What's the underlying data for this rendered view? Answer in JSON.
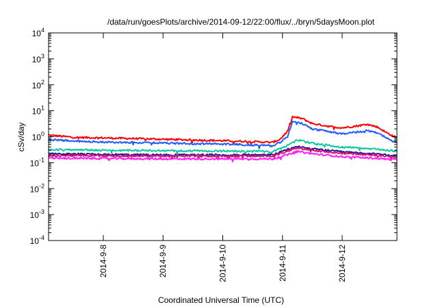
{
  "chart_data": {
    "type": "line",
    "title": "/data/run/goesPlots/archive/2014-09-12/22:00/flux/../bryn/5daysMoon.plot",
    "xlabel": "Coordinated Universal Time (UTC)",
    "ylabel": "cSv/day",
    "x_range": [
      "2014-09-07 02:00",
      "2014-09-12 22:00"
    ],
    "x_ticks": [
      "2014-9-8",
      "2014-9-9",
      "2014-9-10",
      "2014-9-11",
      "2014-9-12"
    ],
    "y_scale": "log",
    "ylim": [
      0.0001,
      10000
    ],
    "y_ticks": [
      {
        "base": "10",
        "exp": "4"
      },
      {
        "base": "10",
        "exp": "3"
      },
      {
        "base": "10",
        "exp": "2"
      },
      {
        "base": "10",
        "exp": "1"
      },
      {
        "base": "10",
        "exp": "0"
      },
      {
        "base": "10",
        "exp": "-1"
      },
      {
        "base": "10",
        "exp": "-2"
      },
      {
        "base": "10",
        "exp": "-3"
      },
      {
        "base": "10",
        "exp": "-4"
      }
    ],
    "grid": false,
    "legend": "none",
    "series": [
      {
        "color": "#ff0000",
        "points": [
          [
            "2014-09-07 02:00",
            1.15
          ],
          [
            "2014-09-07 12:00",
            0.95
          ],
          [
            "2014-09-08 00:00",
            0.9
          ],
          [
            "2014-09-08 12:00",
            0.85
          ],
          [
            "2014-09-09 00:00",
            0.8
          ],
          [
            "2014-09-09 12:00",
            0.75
          ],
          [
            "2014-09-10 00:00",
            0.7
          ],
          [
            "2014-09-10 12:00",
            0.65
          ],
          [
            "2014-09-10 20:00",
            0.6
          ],
          [
            "2014-09-10 23:00",
            0.8
          ],
          [
            "2014-09-11 02:00",
            1.6
          ],
          [
            "2014-09-11 04:00",
            5.8
          ],
          [
            "2014-09-11 08:00",
            5.0
          ],
          [
            "2014-09-11 12:00",
            3.2
          ],
          [
            "2014-09-11 20:00",
            2.4
          ],
          [
            "2014-09-12 00:00",
            2.2
          ],
          [
            "2014-09-12 06:00",
            2.6
          ],
          [
            "2014-09-12 10:00",
            3.0
          ],
          [
            "2014-09-12 14:00",
            2.4
          ],
          [
            "2014-09-12 18:00",
            1.4
          ],
          [
            "2014-09-12 22:00",
            0.9
          ]
        ]
      },
      {
        "color": "#1f5fff",
        "points": [
          [
            "2014-09-07 02:00",
            0.78
          ],
          [
            "2014-09-07 12:00",
            0.68
          ],
          [
            "2014-09-08 00:00",
            0.62
          ],
          [
            "2014-09-08 12:00",
            0.6
          ],
          [
            "2014-09-09 00:00",
            0.57
          ],
          [
            "2014-09-09 12:00",
            0.54
          ],
          [
            "2014-09-10 00:00",
            0.52
          ],
          [
            "2014-09-10 12:00",
            0.48
          ],
          [
            "2014-09-10 20:00",
            0.45
          ],
          [
            "2014-09-10 23:00",
            0.6
          ],
          [
            "2014-09-11 02:00",
            1.0
          ],
          [
            "2014-09-11 04:00",
            3.8
          ],
          [
            "2014-09-11 08:00",
            3.2
          ],
          [
            "2014-09-11 12:00",
            2.0
          ],
          [
            "2014-09-11 20:00",
            1.5
          ],
          [
            "2014-09-12 00:00",
            1.3
          ],
          [
            "2014-09-12 06:00",
            1.5
          ],
          [
            "2014-09-12 10:00",
            1.7
          ],
          [
            "2014-09-12 14:00",
            1.4
          ],
          [
            "2014-09-12 18:00",
            0.9
          ],
          [
            "2014-09-12 22:00",
            0.6
          ]
        ]
      },
      {
        "color": "#10c8a0",
        "points": [
          [
            "2014-09-07 02:00",
            0.32
          ],
          [
            "2014-09-08 00:00",
            0.3
          ],
          [
            "2014-09-09 00:00",
            0.29
          ],
          [
            "2014-09-10 00:00",
            0.28
          ],
          [
            "2014-09-10 20:00",
            0.27
          ],
          [
            "2014-09-11 02:00",
            0.45
          ],
          [
            "2014-09-11 06:00",
            0.75
          ],
          [
            "2014-09-11 12:00",
            0.55
          ],
          [
            "2014-09-12 00:00",
            0.4
          ],
          [
            "2014-09-12 12:00",
            0.34
          ],
          [
            "2014-09-12 22:00",
            0.28
          ]
        ]
      },
      {
        "color": "#1a1a90",
        "points": [
          [
            "2014-09-07 02:00",
            0.22
          ],
          [
            "2014-09-08 00:00",
            0.21
          ],
          [
            "2014-09-09 00:00",
            0.2
          ],
          [
            "2014-09-10 00:00",
            0.2
          ],
          [
            "2014-09-10 20:00",
            0.2
          ],
          [
            "2014-09-11 02:00",
            0.32
          ],
          [
            "2014-09-11 06:00",
            0.42
          ],
          [
            "2014-09-11 12:00",
            0.34
          ],
          [
            "2014-09-12 00:00",
            0.26
          ],
          [
            "2014-09-12 12:00",
            0.22
          ],
          [
            "2014-09-12 22:00",
            0.18
          ]
        ]
      },
      {
        "color": "#e01070",
        "points": [
          [
            "2014-09-07 02:00",
            0.19
          ],
          [
            "2014-09-08 00:00",
            0.185
          ],
          [
            "2014-09-09 00:00",
            0.18
          ],
          [
            "2014-09-10 00:00",
            0.18
          ],
          [
            "2014-09-10 20:00",
            0.18
          ],
          [
            "2014-09-11 02:00",
            0.28
          ],
          [
            "2014-09-11 06:00",
            0.37
          ],
          [
            "2014-09-11 12:00",
            0.3
          ],
          [
            "2014-09-12 00:00",
            0.23
          ],
          [
            "2014-09-12 12:00",
            0.2
          ],
          [
            "2014-09-12 22:00",
            0.16
          ]
        ]
      },
      {
        "color": "#ff20ff",
        "points": [
          [
            "2014-09-07 02:00",
            0.15
          ],
          [
            "2014-09-08 00:00",
            0.145
          ],
          [
            "2014-09-09 00:00",
            0.14
          ],
          [
            "2014-09-10 00:00",
            0.14
          ],
          [
            "2014-09-10 20:00",
            0.14
          ],
          [
            "2014-09-11 02:00",
            0.2
          ],
          [
            "2014-09-11 06:00",
            0.27
          ],
          [
            "2014-09-11 12:00",
            0.22
          ],
          [
            "2014-09-12 00:00",
            0.17
          ],
          [
            "2014-09-12 12:00",
            0.15
          ],
          [
            "2014-09-12 22:00",
            0.13
          ]
        ]
      }
    ]
  }
}
